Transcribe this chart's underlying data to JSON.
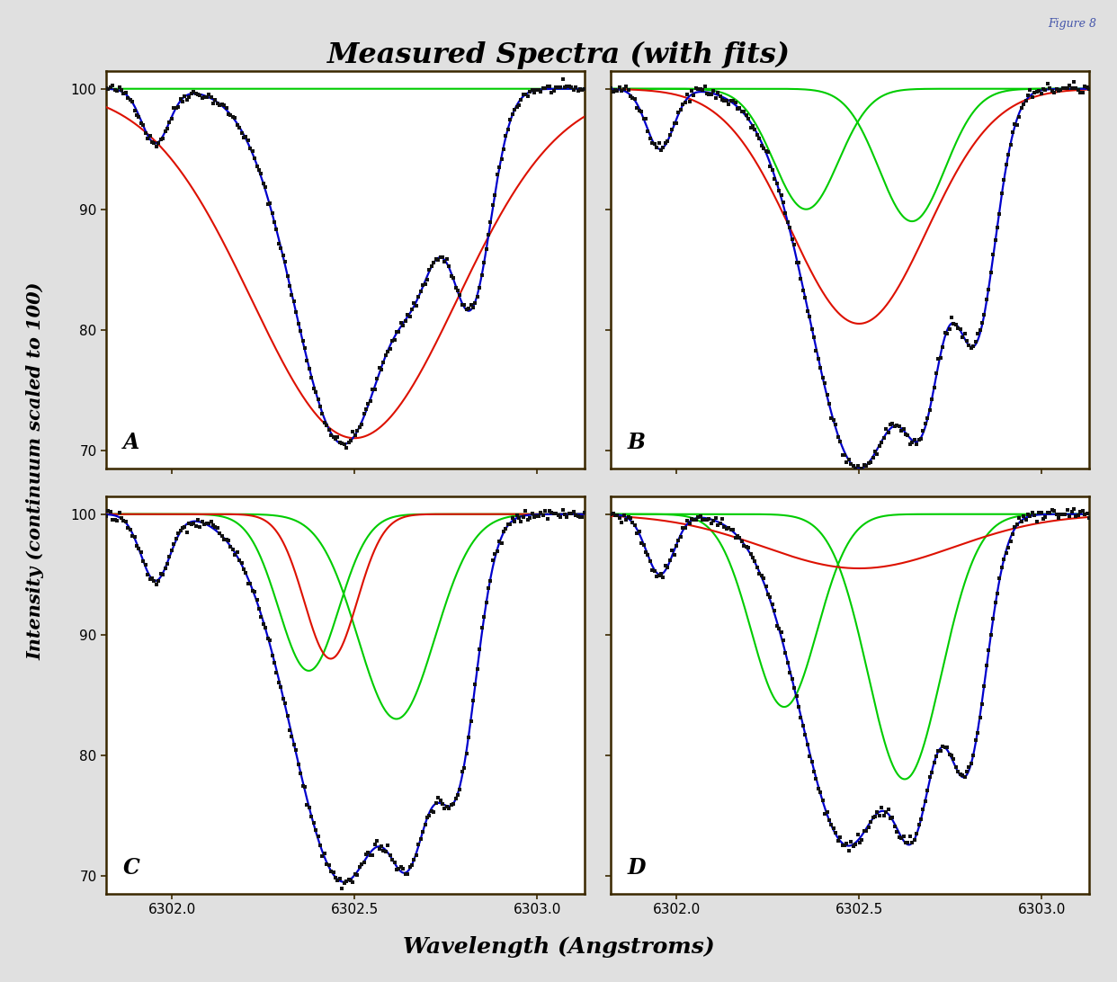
{
  "title": "Measured Spectra (with fits)",
  "figure_label": "Figure 8",
  "xlabel": "Wavelength (Angstroms)",
  "ylabel": "Intensity (continuum scaled to 100)",
  "subplot_labels": [
    "A",
    "B",
    "C",
    "D"
  ],
  "xlim": [
    6301.82,
    6303.13
  ],
  "ylim": [
    68.5,
    101.5
  ],
  "yticks": [
    70,
    80,
    90,
    100
  ],
  "xticks": [
    6302.0,
    6302.5,
    6303.0
  ],
  "background_color": "#e0e0e0",
  "panel_bg": "#ffffff",
  "colors": {
    "green": "#00cc00",
    "red": "#dd1100",
    "blue": "#0000cc",
    "dots": "#111111"
  },
  "spine_color": "#3a2800"
}
